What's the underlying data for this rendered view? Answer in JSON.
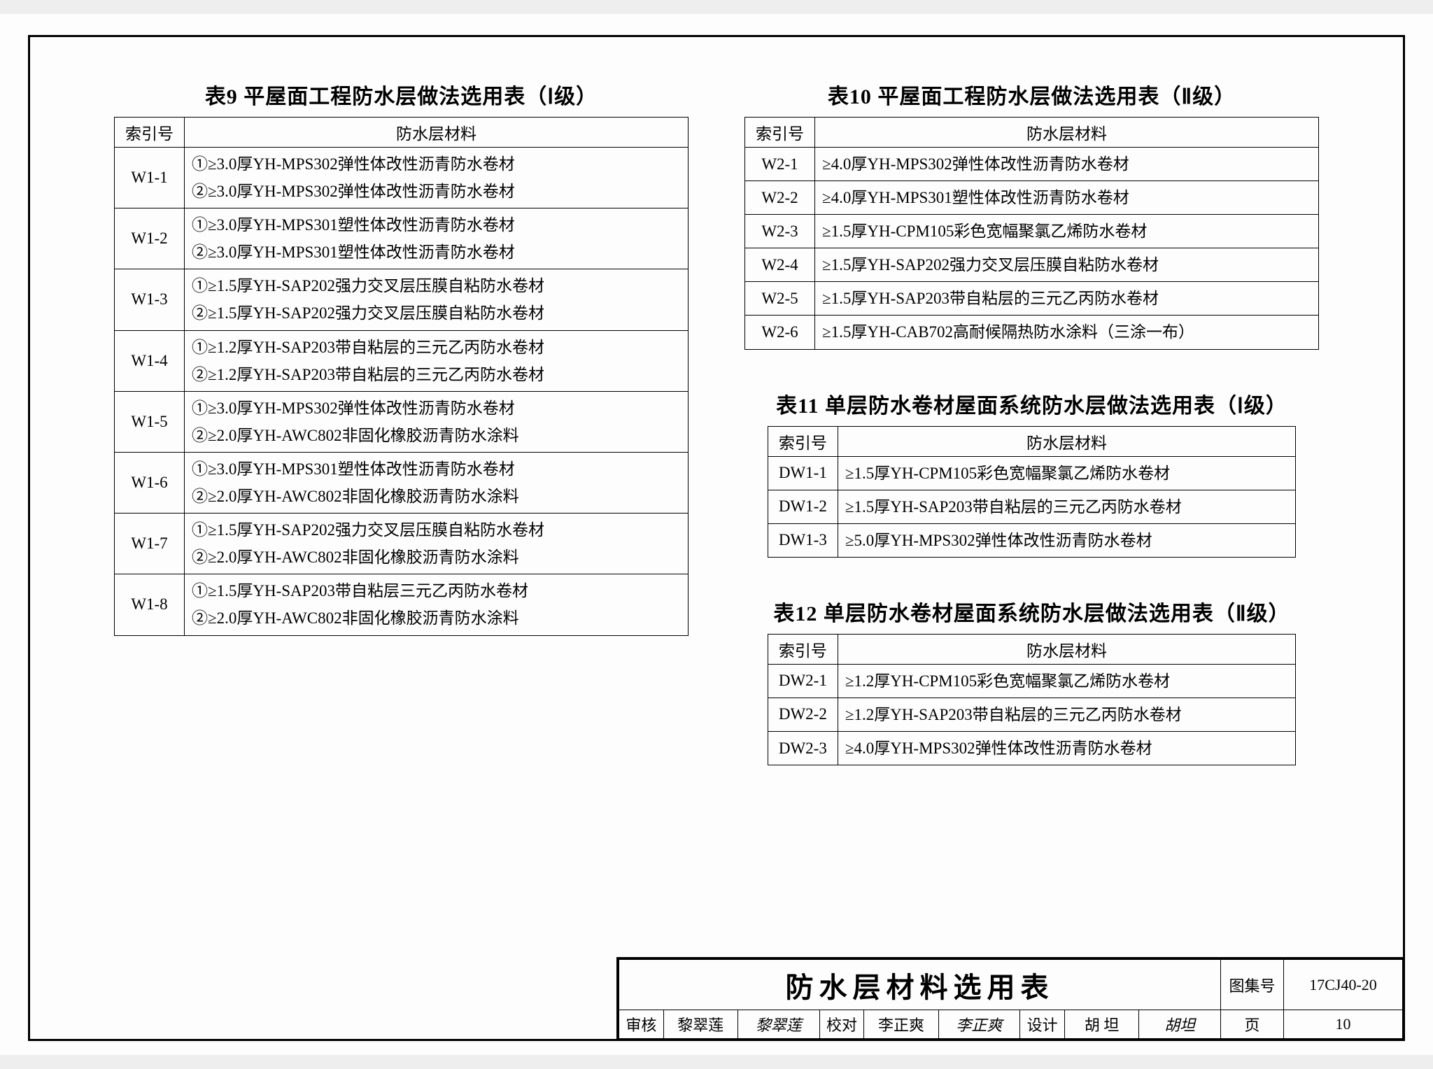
{
  "table9": {
    "title": "表9  平屋面工程防水层做法选用表（Ⅰ级）",
    "headers": {
      "index": "索引号",
      "material": "防水层材料"
    },
    "rows": [
      {
        "idx": "W1-1",
        "lines": [
          "①≥3.0厚YH-MPS302弹性体改性沥青防水卷材",
          "②≥3.0厚YH-MPS302弹性体改性沥青防水卷材"
        ]
      },
      {
        "idx": "W1-2",
        "lines": [
          "①≥3.0厚YH-MPS301塑性体改性沥青防水卷材",
          "②≥3.0厚YH-MPS301塑性体改性沥青防水卷材"
        ]
      },
      {
        "idx": "W1-3",
        "lines": [
          "①≥1.5厚YH-SAP202强力交叉层压膜自粘防水卷材",
          "②≥1.5厚YH-SAP202强力交叉层压膜自粘防水卷材"
        ]
      },
      {
        "idx": "W1-4",
        "lines": [
          "①≥1.2厚YH-SAP203带自粘层的三元乙丙防水卷材",
          "②≥1.2厚YH-SAP203带自粘层的三元乙丙防水卷材"
        ]
      },
      {
        "idx": "W1-5",
        "lines": [
          "①≥3.0厚YH-MPS302弹性体改性沥青防水卷材",
          "②≥2.0厚YH-AWC802非固化橡胶沥青防水涂料"
        ]
      },
      {
        "idx": "W1-6",
        "lines": [
          "①≥3.0厚YH-MPS301塑性体改性沥青防水卷材",
          "②≥2.0厚YH-AWC802非固化橡胶沥青防水涂料"
        ]
      },
      {
        "idx": "W1-7",
        "lines": [
          "①≥1.5厚YH-SAP202强力交叉层压膜自粘防水卷材",
          "②≥2.0厚YH-AWC802非固化橡胶沥青防水涂料"
        ]
      },
      {
        "idx": "W1-8",
        "lines": [
          "①≥1.5厚YH-SAP203带自粘层三元乙丙防水卷材",
          "②≥2.0厚YH-AWC802非固化橡胶沥青防水涂料"
        ]
      }
    ]
  },
  "table10": {
    "title": "表10  平屋面工程防水层做法选用表（Ⅱ级）",
    "headers": {
      "index": "索引号",
      "material": "防水层材料"
    },
    "rows": [
      {
        "idx": "W2-1",
        "lines": [
          "≥4.0厚YH-MPS302弹性体改性沥青防水卷材"
        ]
      },
      {
        "idx": "W2-2",
        "lines": [
          "≥4.0厚YH-MPS301塑性体改性沥青防水卷材"
        ]
      },
      {
        "idx": "W2-3",
        "lines": [
          "≥1.5厚YH-CPM105彩色宽幅聚氯乙烯防水卷材"
        ]
      },
      {
        "idx": "W2-4",
        "lines": [
          "≥1.5厚YH-SAP202强力交叉层压膜自粘防水卷材"
        ]
      },
      {
        "idx": "W2-5",
        "lines": [
          "≥1.5厚YH-SAP203带自粘层的三元乙丙防水卷材"
        ]
      },
      {
        "idx": "W2-6",
        "lines": [
          "≥1.5厚YH-CAB702高耐候隔热防水涂料（三涂一布）"
        ]
      }
    ]
  },
  "table11": {
    "title": "表11  单层防水卷材屋面系统防水层做法选用表（Ⅰ级）",
    "headers": {
      "index": "索引号",
      "material": "防水层材料"
    },
    "rows": [
      {
        "idx": "DW1-1",
        "lines": [
          "≥1.5厚YH-CPM105彩色宽幅聚氯乙烯防水卷材"
        ]
      },
      {
        "idx": "DW1-2",
        "lines": [
          "≥1.5厚YH-SAP203带自粘层的三元乙丙防水卷材"
        ]
      },
      {
        "idx": "DW1-3",
        "lines": [
          "≥5.0厚YH-MPS302弹性体改性沥青防水卷材"
        ]
      }
    ]
  },
  "table12": {
    "title": "表12  单层防水卷材屋面系统防水层做法选用表（Ⅱ级）",
    "headers": {
      "index": "索引号",
      "material": "防水层材料"
    },
    "rows": [
      {
        "idx": "DW2-1",
        "lines": [
          "≥1.2厚YH-CPM105彩色宽幅聚氯乙烯防水卷材"
        ]
      },
      {
        "idx": "DW2-2",
        "lines": [
          "≥1.2厚YH-SAP203带自粘层的三元乙丙防水卷材"
        ]
      },
      {
        "idx": "DW2-3",
        "lines": [
          "≥4.0厚YH-MPS302弹性体改性沥青防水卷材"
        ]
      }
    ]
  },
  "titleblock": {
    "main": "防水层材料选用表",
    "atlas_label": "图集号",
    "atlas_no": "17CJ40-20",
    "review_label": "审核",
    "review_name": "黎翠莲",
    "review_sig": "黎翠莲",
    "check_label": "校对",
    "check_name": "李正爽",
    "check_sig": "李正爽",
    "design_label": "设计",
    "design_name": "胡  坦",
    "design_sig": "胡坦",
    "page_label": "页",
    "page_no": "10"
  }
}
